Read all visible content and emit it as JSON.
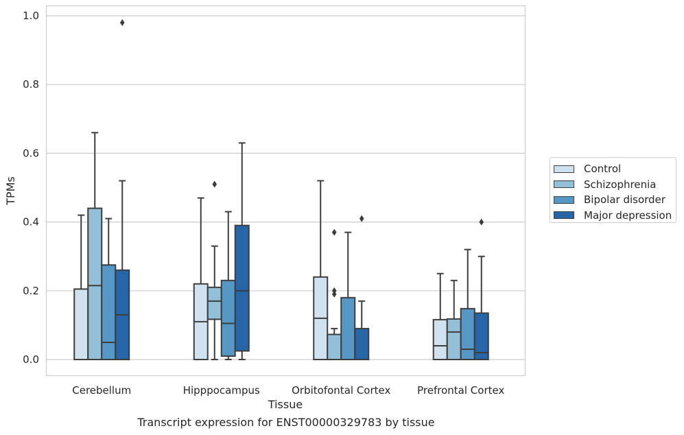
{
  "chart_data": {
    "type": "box",
    "xlabel": "Tissue",
    "ylabel": "TPMs",
    "caption": "Transcript expression for ENST00000329783 by tissue",
    "ylim": [
      -0.045,
      1.03
    ],
    "yticks": [
      0.0,
      0.2,
      0.4,
      0.6,
      0.8,
      1.0
    ],
    "ytick_labels": [
      "0.0",
      "0.2",
      "0.4",
      "0.6",
      "0.8",
      "1.0"
    ],
    "grid": true,
    "legend_position": "right",
    "categories": [
      "Cerebellum",
      "Hipppocampus",
      "Orbitofontal Cortex",
      "Prefrontal Cortex"
    ],
    "series": [
      {
        "name": "Control",
        "color": "#d0e1f0",
        "boxes": [
          {
            "min": 0.0,
            "q1": 0.0,
            "median": 0.0,
            "q3": 0.205,
            "max": 0.42,
            "outliers": []
          },
          {
            "min": 0.0,
            "q1": 0.0,
            "median": 0.11,
            "q3": 0.22,
            "max": 0.47,
            "outliers": []
          },
          {
            "min": 0.0,
            "q1": 0.0,
            "median": 0.12,
            "q3": 0.24,
            "max": 0.52,
            "outliers": []
          },
          {
            "min": 0.0,
            "q1": 0.0,
            "median": 0.04,
            "q3": 0.116,
            "max": 0.25,
            "outliers": []
          }
        ]
      },
      {
        "name": "Schizophrenia",
        "color": "#93bfd9",
        "boxes": [
          {
            "min": 0.0,
            "q1": 0.0,
            "median": 0.215,
            "q3": 0.44,
            "max": 0.66,
            "outliers": []
          },
          {
            "min": 0.0,
            "q1": 0.117,
            "median": 0.17,
            "q3": 0.21,
            "max": 0.33,
            "outliers": [
              0.51
            ]
          },
          {
            "min": 0.0,
            "q1": 0.0,
            "median": 0.0,
            "q3": 0.073,
            "max": 0.09,
            "outliers": [
              0.19,
              0.2,
              0.37
            ]
          },
          {
            "min": 0.0,
            "q1": 0.0,
            "median": 0.08,
            "q3": 0.118,
            "max": 0.23,
            "outliers": []
          }
        ]
      },
      {
        "name": "Bipolar disorder",
        "color": "#5598c6",
        "boxes": [
          {
            "min": 0.0,
            "q1": 0.0,
            "median": 0.05,
            "q3": 0.275,
            "max": 0.41,
            "outliers": []
          },
          {
            "min": 0.0,
            "q1": 0.01,
            "median": 0.105,
            "q3": 0.23,
            "max": 0.43,
            "outliers": []
          },
          {
            "min": 0.0,
            "q1": 0.0,
            "median": 0.0,
            "q3": 0.18,
            "max": 0.37,
            "outliers": []
          },
          {
            "min": 0.0,
            "q1": 0.0,
            "median": 0.03,
            "q3": 0.148,
            "max": 0.32,
            "outliers": []
          }
        ]
      },
      {
        "name": "Major depression",
        "color": "#2565a8",
        "boxes": [
          {
            "min": 0.0,
            "q1": 0.0,
            "median": 0.13,
            "q3": 0.26,
            "max": 0.52,
            "outliers": [
              0.98
            ]
          },
          {
            "min": 0.0,
            "q1": 0.025,
            "median": 0.2,
            "q3": 0.39,
            "max": 0.63,
            "outliers": []
          },
          {
            "min": 0.0,
            "q1": 0.0,
            "median": 0.0,
            "q3": 0.09,
            "max": 0.17,
            "outliers": [
              0.41
            ]
          },
          {
            "min": 0.0,
            "q1": 0.0,
            "median": 0.02,
            "q3": 0.135,
            "max": 0.3,
            "outliers": [
              0.4
            ]
          }
        ]
      }
    ]
  }
}
